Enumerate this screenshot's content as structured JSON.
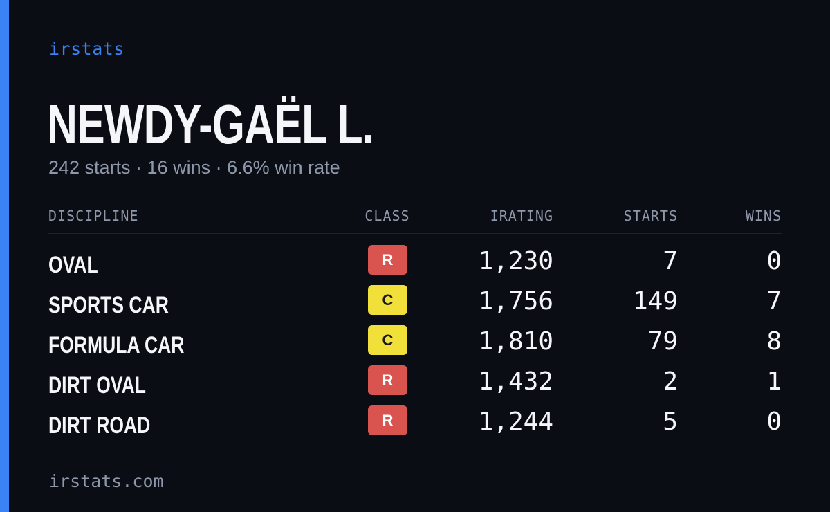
{
  "brand": "irstats",
  "colors": {
    "accent": "#3b82f6",
    "background": "#0b0d14",
    "class_r": "#d9534f",
    "class_c": "#f2e03a"
  },
  "driver": {
    "name": "NEWDY-GAËL L.",
    "summary": "242 starts · 16 wins · 6.6% win rate"
  },
  "table": {
    "headers": {
      "discipline": "DISCIPLINE",
      "class": "CLASS",
      "irating": "IRATING",
      "starts": "STARTS",
      "wins": "WINS"
    },
    "rows": [
      {
        "discipline": "OVAL",
        "class": "R",
        "irating": "1,230",
        "starts": "7",
        "wins": "0"
      },
      {
        "discipline": "SPORTS CAR",
        "class": "C",
        "irating": "1,756",
        "starts": "149",
        "wins": "7"
      },
      {
        "discipline": "FORMULA CAR",
        "class": "C",
        "irating": "1,810",
        "starts": "79",
        "wins": "8"
      },
      {
        "discipline": "DIRT OVAL",
        "class": "R",
        "irating": "1,432",
        "starts": "2",
        "wins": "1"
      },
      {
        "discipline": "DIRT ROAD",
        "class": "R",
        "irating": "1,244",
        "starts": "5",
        "wins": "0"
      }
    ]
  },
  "footer": "irstats.com"
}
